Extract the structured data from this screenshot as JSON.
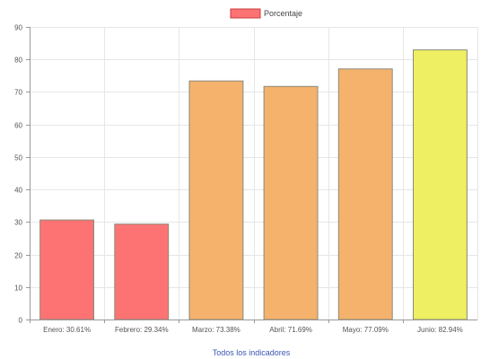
{
  "chart_data": {
    "type": "bar",
    "categories": [
      "Enero: 30.61%",
      "Febrero: 29.34%",
      "Marzo: 73.38%",
      "Abril: 71.69%",
      "Mayo: 77.09%",
      "Junio: 82.94%"
    ],
    "series": [
      {
        "name": "Porcentaje",
        "values": [
          30.61,
          29.34,
          73.38,
          71.69,
          77.09,
          82.94
        ]
      }
    ],
    "bar_colors": [
      "#fd7373",
      "#fd7373",
      "#f4b26c",
      "#f4b26c",
      "#f4b26c",
      "#eeef62"
    ],
    "legend_color": "#fd7373",
    "xlabel": "Todos los indicadores",
    "ylabel": "",
    "ylim": [
      0,
      90
    ],
    "yticks": [
      0,
      10,
      20,
      30,
      40,
      50,
      60,
      70,
      80,
      90
    ],
    "grid": true,
    "legend_position": "top-center"
  }
}
